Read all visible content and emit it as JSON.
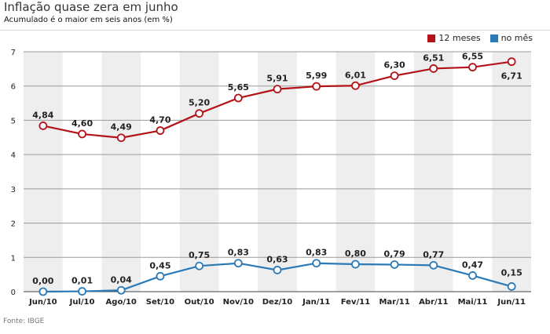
{
  "header": {
    "title": "Inflação quase zera em junho",
    "subtitle": "Acumulado é o maior em seis anos (em %)"
  },
  "footer": {
    "source": "Fonte: IBGE"
  },
  "chart_data": {
    "type": "line",
    "categories": [
      "Jun/10",
      "Jul/10",
      "Ago/10",
      "Set/10",
      "Out/10",
      "Nov/10",
      "Dez/10",
      "Jan/11",
      "Fev/11",
      "Mar/11",
      "Abr/11",
      "Mai/11",
      "Jun/11"
    ],
    "series": [
      {
        "name": "12 meses",
        "color": "#b31217",
        "values": [
          4.84,
          4.6,
          4.49,
          4.7,
          5.2,
          5.65,
          5.91,
          5.99,
          6.01,
          6.3,
          6.51,
          6.55,
          6.71
        ],
        "labels": [
          "4,84",
          "4,60",
          "4,49",
          "4,70",
          "5,20",
          "5,65",
          "5,91",
          "5,99",
          "6,01",
          "6,30",
          "6,51",
          "6,55",
          "6,71"
        ]
      },
      {
        "name": "no mês",
        "color": "#2a7ab8",
        "values": [
          0.0,
          0.01,
          0.04,
          0.45,
          0.75,
          0.83,
          0.63,
          0.83,
          0.8,
          0.79,
          0.77,
          0.47,
          0.15
        ],
        "labels": [
          "0,00",
          "0,01",
          "0,04",
          "0,45",
          "0,75",
          "0,83",
          "0,63",
          "0,83",
          "0,80",
          "0,79",
          "0,77",
          "0,47",
          "0,15"
        ]
      }
    ],
    "yticks": [
      "0",
      "1",
      "2",
      "3",
      "4",
      "5",
      "6",
      "7"
    ],
    "ylim": [
      0,
      7
    ],
    "grid": true,
    "legend_position": "top-right"
  }
}
